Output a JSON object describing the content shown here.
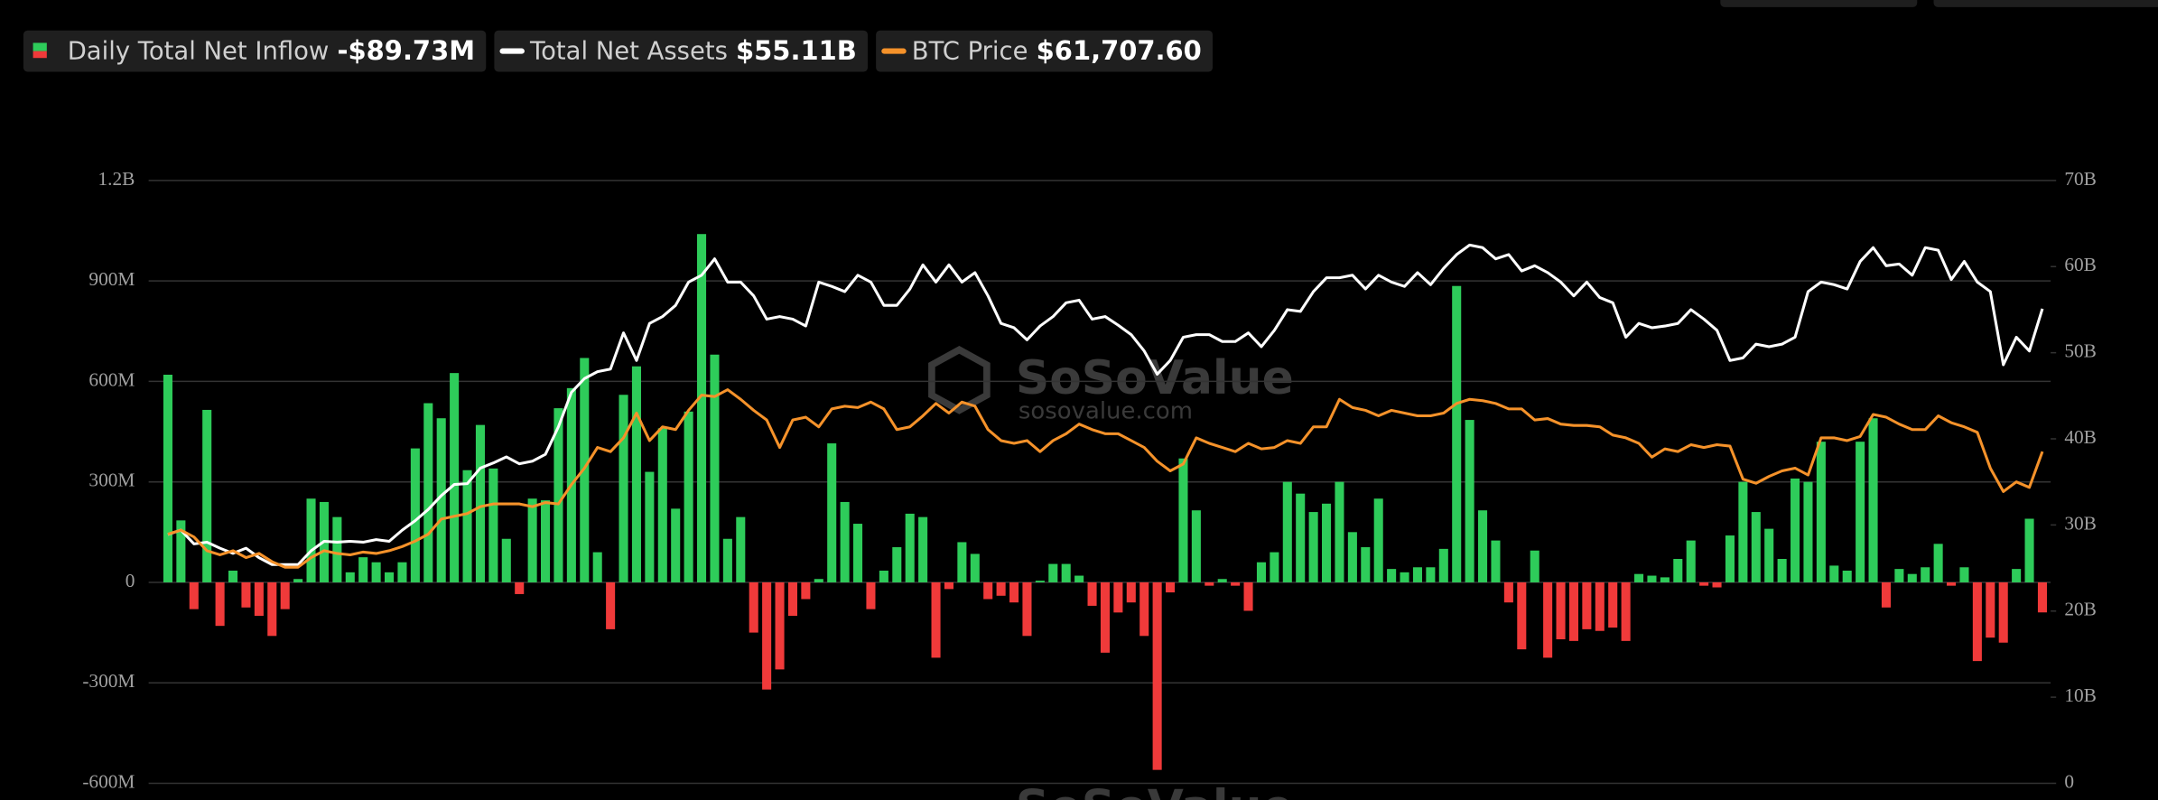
{
  "chart_data": {
    "type": "bar",
    "watermark": {
      "brand": "SoSoValue",
      "url": "sosovalue.com"
    },
    "ylim": [
      -600,
      1200
    ],
    "yticks": [
      {
        "value": -600,
        "label": "-600M"
      },
      {
        "value": -300,
        "label": "-300M"
      },
      0,
      {
        "value": 300,
        "label": "300M"
      },
      {
        "value": 600,
        "label": "600M"
      },
      {
        "value": 900,
        "label": "900M"
      },
      {
        "value": 1200,
        "label": "1.2B"
      }
    ],
    "y2lim": [
      0,
      70
    ],
    "y2ticks": [
      0,
      {
        "value": 10,
        "label": "10B"
      },
      {
        "value": 20,
        "label": "20B"
      },
      {
        "value": 30,
        "label": "30B"
      },
      {
        "value": 40,
        "label": "40B"
      },
      {
        "value": 50,
        "label": "50B"
      },
      {
        "value": 60,
        "label": "60B"
      },
      {
        "value": 70,
        "label": "70B"
      }
    ],
    "y3lim": [
      0,
      112150
    ],
    "grid": true,
    "series": [
      {
        "name": "Daily Total Net Inflow",
        "legend_value": "-$89.73M",
        "type": "bar",
        "color": "#2ecc5a",
        "negative_color": "#f03a3a",
        "values": [
          620,
          185,
          -80,
          515,
          -130,
          35,
          -75,
          -100,
          -160,
          -80,
          10,
          250,
          240,
          195,
          30,
          75,
          60,
          30,
          60,
          400,
          535,
          490,
          625,
          335,
          470,
          340,
          130,
          -35,
          250,
          245,
          520,
          580,
          670,
          90,
          -140,
          560,
          645,
          330,
          460,
          220,
          510,
          1040,
          680,
          130,
          195,
          -150,
          -320,
          -260,
          -100,
          -50,
          10,
          415,
          240,
          175,
          -80,
          35,
          105,
          205,
          195,
          -225,
          -20,
          120,
          85,
          -50,
          -40,
          -60,
          -160,
          5,
          55,
          55,
          20,
          -70,
          -210,
          -90,
          -60,
          -160,
          -560,
          -30,
          370,
          215,
          -10,
          10,
          -10,
          -85,
          60,
          90,
          300,
          265,
          210,
          235,
          300,
          150,
          105,
          250,
          40,
          30,
          45,
          45,
          100,
          885,
          485,
          215,
          125,
          -60,
          -200,
          95,
          -225,
          -170,
          -175,
          -140,
          -145,
          -135,
          -175,
          25,
          20,
          15,
          70,
          125,
          -10,
          -15,
          140,
          300,
          210,
          160,
          70,
          310,
          300,
          420,
          50,
          35,
          420,
          490,
          -75,
          40,
          25,
          45,
          115,
          -10,
          45,
          -235,
          -165,
          -180,
          40,
          190,
          -89.73
        ]
      },
      {
        "name": "Total Net Assets",
        "legend_value": "$55.11B",
        "type": "line",
        "axis": "y2",
        "color": "#ffffff",
        "values": [
          28.9,
          29.4,
          27.8,
          28.0,
          27.3,
          26.7,
          27.3,
          26.2,
          25.4,
          25.4,
          25.4,
          27.0,
          28.1,
          28.0,
          28.1,
          28.0,
          28.3,
          28.1,
          29.4,
          30.5,
          31.8,
          33.4,
          34.7,
          34.8,
          36.6,
          37.2,
          37.9,
          37.1,
          37.4,
          38.2,
          41.4,
          45.4,
          47.0,
          47.8,
          48.1,
          52.3,
          49.1,
          53.4,
          54.2,
          55.5,
          58.2,
          59.0,
          60.9,
          58.2,
          58.2,
          56.6,
          53.9,
          54.2,
          53.9,
          53.1,
          58.2,
          57.7,
          57.1,
          59.0,
          58.2,
          55.5,
          55.5,
          57.4,
          60.2,
          58.2,
          60.2,
          58.2,
          59.3,
          56.6,
          53.4,
          52.9,
          51.5,
          53.1,
          54.2,
          55.8,
          56.1,
          53.9,
          54.2,
          53.2,
          52.1,
          50.2,
          47.5,
          49.1,
          51.8,
          52.1,
          52.1,
          51.3,
          51.3,
          52.3,
          50.7,
          52.6,
          55.0,
          54.8,
          57.1,
          58.7,
          58.7,
          59.0,
          57.4,
          59.0,
          58.2,
          57.7,
          59.3,
          57.9,
          59.8,
          61.4,
          62.5,
          62.2,
          60.9,
          61.4,
          59.5,
          60.1,
          59.3,
          58.2,
          56.6,
          58.2,
          56.4,
          55.8,
          51.8,
          53.4,
          52.9,
          53.1,
          53.4,
          55.0,
          53.9,
          52.6,
          49.1,
          49.4,
          51.0,
          50.7,
          51.0,
          51.8,
          57.1,
          58.2,
          57.9,
          57.4,
          60.6,
          62.2,
          60.1,
          60.3,
          59.0,
          62.2,
          61.9,
          58.5,
          60.6,
          58.2,
          57.1,
          48.6,
          51.8,
          50.2,
          55.11
        ]
      },
      {
        "name": "BTC Price",
        "legend_value": "$61,707.60",
        "type": "line",
        "axis": "y3",
        "color": "#f5922a",
        "values": [
          46345,
          47113,
          45833,
          43272,
          42504,
          43272,
          41992,
          42760,
          41224,
          40200,
          40200,
          41992,
          43272,
          42760,
          42504,
          43016,
          42760,
          43272,
          44041,
          45065,
          46345,
          49162,
          49674,
          50186,
          51466,
          51978,
          51978,
          51978,
          51466,
          52234,
          51978,
          55563,
          58635,
          62476,
          61708,
          64269,
          68877,
          63756,
          66317,
          65805,
          69390,
          72206,
          71950,
          73230,
          71438,
          69390,
          67597,
          62476,
          67597,
          68109,
          66317,
          69646,
          70158,
          69902,
          70926,
          69646,
          65805,
          66317,
          68365,
          70670,
          68877,
          70926,
          70158,
          65805,
          63756,
          63244,
          63756,
          61708,
          63756,
          65037,
          66829,
          65805,
          65037,
          65037,
          63756,
          62476,
          59916,
          58123,
          59404,
          64269,
          63244,
          62476,
          61708,
          63244,
          62220,
          62476,
          63756,
          63244,
          66317,
          66317,
          71438,
          69902,
          69390,
          68365,
          69390,
          68877,
          68365,
          68365,
          68877,
          70670,
          71438,
          71182,
          70670,
          69646,
          69646,
          67597,
          67853,
          66829,
          66573,
          66573,
          66317,
          64781,
          64269,
          63244,
          60684,
          62220,
          61708,
          62988,
          62476,
          62988,
          62732,
          56587,
          55819,
          57099,
          58123,
          58635,
          57355,
          64269,
          64269,
          63756,
          64525,
          68621,
          68109,
          66829,
          65805,
          65805,
          68365,
          67085,
          66317,
          65293,
          58635,
          54283,
          56075,
          55051,
          61707.6
        ]
      }
    ]
  }
}
